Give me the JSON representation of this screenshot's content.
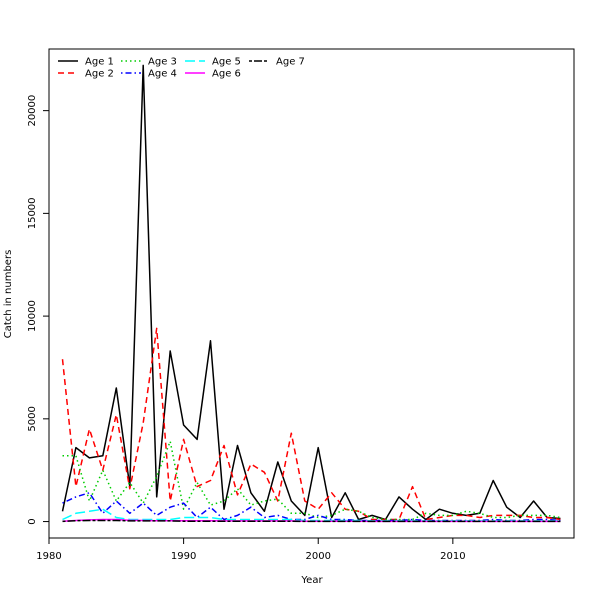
{
  "chart_data": {
    "type": "line",
    "xlabel": "Year",
    "ylabel": "Catch in numbers",
    "xlim": [
      1980,
      2019
    ],
    "ylim": [
      -800,
      23000
    ],
    "xticks": [
      1980,
      1990,
      2000,
      2010
    ],
    "yticks": [
      0,
      5000,
      10000,
      15000,
      20000
    ],
    "legend_position": "top-left",
    "x": [
      1981,
      1982,
      1983,
      1984,
      1985,
      1986,
      1987,
      1988,
      1989,
      1990,
      1991,
      1992,
      1993,
      1994,
      1995,
      1996,
      1997,
      1998,
      1999,
      2000,
      2001,
      2002,
      2003,
      2004,
      2005,
      2006,
      2007,
      2008,
      2009,
      2010,
      2011,
      2012,
      2013,
      2014,
      2015,
      2016,
      2017,
      2018
    ],
    "series": [
      {
        "name": "Age 1",
        "color": "#000000",
        "dash": "solid",
        "values": [
          500,
          3600,
          3100,
          3200,
          6500,
          1700,
          22200,
          1200,
          8300,
          4700,
          4000,
          8800,
          600,
          3700,
          1400,
          500,
          2900,
          1000,
          300,
          3600,
          200,
          1400,
          100,
          300,
          100,
          1200,
          600,
          100,
          600,
          400,
          300,
          400,
          2000,
          700,
          200,
          1000,
          200,
          150
        ]
      },
      {
        "name": "Age 2",
        "color": "#ff0000",
        "dash": "dashed",
        "values": [
          7900,
          1700,
          4500,
          2500,
          5200,
          1600,
          4800,
          9400,
          1000,
          4000,
          1700,
          2000,
          3700,
          1300,
          2800,
          2400,
          1000,
          4300,
          1000,
          600,
          1400,
          600,
          500,
          100,
          100,
          100,
          1700,
          100,
          200,
          300,
          300,
          200,
          300,
          300,
          300,
          200,
          200,
          100
        ]
      },
      {
        "name": "Age 3",
        "color": "#00cd00",
        "dash": "dotted",
        "values": [
          3200,
          3200,
          1000,
          2500,
          1000,
          1900,
          900,
          2200,
          3900,
          600,
          1900,
          800,
          1000,
          1600,
          800,
          1000,
          1100,
          400,
          400,
          200,
          300,
          600,
          500,
          200,
          100,
          100,
          100,
          400,
          300,
          300,
          500,
          400,
          200,
          200,
          300,
          300,
          300,
          200
        ]
      },
      {
        "name": "Age 4",
        "color": "#0000ff",
        "dash": "dotdash",
        "values": [
          900,
          1200,
          1400,
          400,
          1000,
          400,
          900,
          300,
          700,
          900,
          200,
          700,
          100,
          300,
          700,
          200,
          300,
          100,
          100,
          300,
          100,
          100,
          50,
          50,
          50,
          50,
          100,
          50,
          50,
          50,
          50,
          50,
          100,
          50,
          50,
          100,
          100,
          50
        ]
      },
      {
        "name": "Age 5",
        "color": "#00ffff",
        "dash": "longdash",
        "values": [
          100,
          400,
          500,
          600,
          200,
          100,
          100,
          100,
          100,
          200,
          200,
          200,
          100,
          100,
          100,
          100,
          100,
          100,
          50,
          50,
          50,
          50,
          50,
          30,
          30,
          30,
          30,
          30,
          30,
          30,
          30,
          30,
          30,
          30,
          30,
          30,
          30,
          30
        ]
      },
      {
        "name": "Age 6",
        "color": "#ff00ff",
        "dash": "solid",
        "values": [
          20,
          50,
          80,
          100,
          100,
          60,
          50,
          40,
          40,
          40,
          40,
          40,
          30,
          30,
          30,
          30,
          30,
          30,
          20,
          20,
          20,
          20,
          20,
          10,
          10,
          10,
          10,
          10,
          10,
          10,
          10,
          10,
          10,
          10,
          10,
          10,
          10,
          10
        ]
      },
      {
        "name": "Age 7",
        "color": "#000000",
        "dash": "twodash",
        "values": [
          10,
          40,
          50,
          50,
          50,
          30,
          30,
          30,
          30,
          20,
          20,
          20,
          20,
          20,
          20,
          20,
          20,
          20,
          10,
          10,
          10,
          10,
          10,
          10,
          10,
          10,
          10,
          10,
          10,
          10,
          10,
          10,
          10,
          10,
          10,
          10,
          10,
          10
        ]
      }
    ]
  }
}
